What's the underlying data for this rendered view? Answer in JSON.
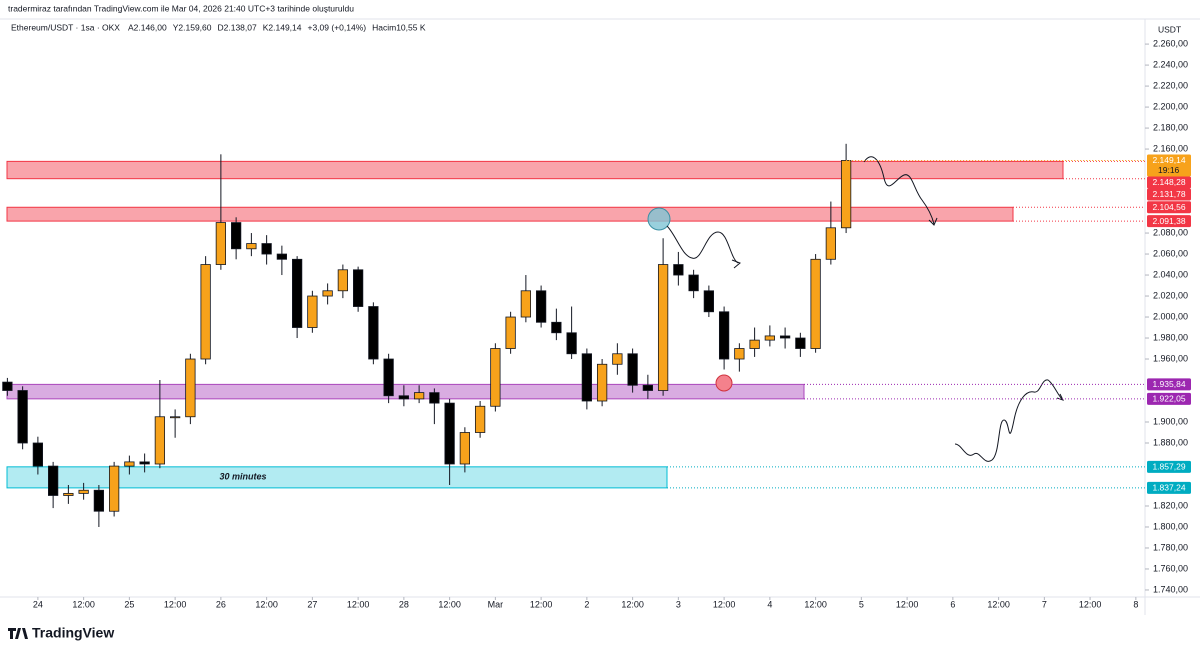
{
  "attribution": "tradermiraz tarafından TradingView.com ile Mar 04, 2026 21:40 UTC+3 tarihinde oluşturuldu",
  "brand": "TradingView",
  "chart_data": {
    "type": "candlestick",
    "title": "Ethereum/USDT · 1sa · OKX",
    "ohlc_header": [
      "A2.146,00",
      "Y2.159,60",
      "D2.138,07",
      "K2.149,14",
      "+3,09 (+0,14%)",
      "Hacim10,55 K"
    ],
    "y_unit": "USDT",
    "up_color": "#f7a21b",
    "down_color": "#000000",
    "x": [
      -8,
      -4,
      0,
      4,
      8,
      12,
      16,
      20,
      24,
      28,
      32,
      36,
      40,
      44,
      48,
      52,
      56,
      60,
      64,
      68,
      72,
      76,
      80,
      84,
      88,
      92,
      96,
      100,
      104,
      108,
      112,
      116,
      120,
      124,
      128,
      132,
      136,
      140,
      144,
      148,
      152,
      156,
      160,
      164,
      168,
      172,
      176,
      180,
      184,
      188,
      192,
      196,
      200,
      204,
      208,
      212
    ],
    "open": [
      1938,
      1930,
      1880,
      1858,
      1830,
      1832,
      1835,
      1815,
      1858,
      1862,
      1860,
      1905,
      1905,
      1960,
      2050,
      2090,
      2065,
      2070,
      2060,
      2055,
      1990,
      2020,
      2025,
      2045,
      2010,
      1960,
      1925,
      1922,
      1928,
      1918,
      1860,
      1890,
      1915,
      1970,
      2000,
      2025,
      1995,
      1985,
      1965,
      1920,
      1955,
      1965,
      1935,
      1930,
      2050,
      2040,
      2025,
      2005,
      1960,
      1970,
      1978,
      1982,
      1980,
      1970,
      2055,
      2085
    ],
    "high": [
      1942,
      1934,
      1886,
      1862,
      1840,
      1842,
      1840,
      1862,
      1868,
      1870,
      1940,
      1912,
      1965,
      2058,
      2155,
      2095,
      2080,
      2078,
      2068,
      2058,
      2025,
      2032,
      2050,
      2048,
      2014,
      1965,
      1935,
      1935,
      1932,
      1922,
      1895,
      1920,
      1975,
      2005,
      2040,
      2030,
      2008,
      2010,
      1970,
      1960,
      1975,
      1970,
      1945,
      2075,
      2062,
      2045,
      2030,
      2010,
      1975,
      1990,
      1992,
      1990,
      1985,
      2060,
      2110,
      2165
    ],
    "low": [
      1925,
      1874,
      1850,
      1818,
      1822,
      1826,
      1800,
      1810,
      1850,
      1852,
      1856,
      1885,
      1898,
      1955,
      2045,
      2055,
      2058,
      2050,
      2040,
      1980,
      1985,
      2012,
      2018,
      2005,
      1955,
      1918,
      1915,
      1918,
      1898,
      1840,
      1852,
      1885,
      1910,
      1965,
      1995,
      1990,
      1978,
      1960,
      1912,
      1915,
      1945,
      1928,
      1922,
      1925,
      2030,
      2018,
      2000,
      1950,
      1948,
      1962,
      1972,
      1970,
      1962,
      1966,
      2050,
      2080
    ],
    "close": [
      1930,
      1880,
      1858,
      1830,
      1832,
      1835,
      1815,
      1858,
      1862,
      1860,
      1905,
      1905,
      1960,
      2050,
      2090,
      2065,
      2070,
      2060,
      2055,
      1990,
      2020,
      2025,
      2045,
      2010,
      1960,
      1925,
      1922,
      1928,
      1918,
      1860,
      1890,
      1915,
      1970,
      2000,
      2025,
      1995,
      1985,
      1965,
      1920,
      1955,
      1965,
      1935,
      1930,
      2050,
      2040,
      2025,
      2005,
      1960,
      1970,
      1978,
      1982,
      1980,
      1970,
      2055,
      2085,
      2149.14
    ],
    "xlim": [
      -8.1,
      290.4
    ],
    "xticks": [
      {
        "value": 0,
        "label": "24"
      },
      {
        "value": 12,
        "label": "12:00"
      },
      {
        "value": 24,
        "label": "25"
      },
      {
        "value": 36,
        "label": "12:00"
      },
      {
        "value": 48,
        "label": "26"
      },
      {
        "value": 60,
        "label": "12:00"
      },
      {
        "value": 72,
        "label": "27"
      },
      {
        "value": 84,
        "label": "12:00"
      },
      {
        "value": 96,
        "label": "28"
      },
      {
        "value": 108,
        "label": "12:00"
      },
      {
        "value": 120,
        "label": "Mar"
      },
      {
        "value": 132,
        "label": "12:00"
      },
      {
        "value": 144,
        "label": "2"
      },
      {
        "value": 156,
        "label": "12:00"
      },
      {
        "value": 168,
        "label": "3"
      },
      {
        "value": 180,
        "label": "12:00"
      },
      {
        "value": 192,
        "label": "4"
      },
      {
        "value": 204,
        "label": "12:00"
      },
      {
        "value": 216,
        "label": "5"
      },
      {
        "value": 228,
        "label": "12:00"
      },
      {
        "value": 240,
        "label": "6"
      },
      {
        "value": 252,
        "label": "12:00"
      },
      {
        "value": 264,
        "label": "7"
      },
      {
        "value": 276,
        "label": "12:00"
      },
      {
        "value": 288,
        "label": "8"
      }
    ],
    "ylim": [
      1733.3,
      2283.9
    ],
    "yticks": [
      {
        "value": 2260,
        "label": "2.260,00"
      },
      {
        "value": 2240,
        "label": "2.240,00"
      },
      {
        "value": 2220,
        "label": "2.220,00"
      },
      {
        "value": 2200,
        "label": "2.200,00"
      },
      {
        "value": 2180,
        "label": "2.180,00"
      },
      {
        "value": 2160,
        "label": "2.160,00"
      },
      {
        "value": 2080,
        "label": "2.080,00"
      },
      {
        "value": 2060,
        "label": "2.060,00"
      },
      {
        "value": 2040,
        "label": "2.040,00"
      },
      {
        "value": 2020,
        "label": "2.020,00"
      },
      {
        "value": 2000,
        "label": "2.000,00"
      },
      {
        "value": 1980,
        "label": "1.980,00"
      },
      {
        "value": 1960,
        "label": "1.960,00"
      },
      {
        "value": 1900,
        "label": "1.900,00"
      },
      {
        "value": 1880,
        "label": "1.880,00"
      },
      {
        "value": 1820,
        "label": "1.820,00"
      },
      {
        "value": 1800,
        "label": "1.800,00"
      },
      {
        "value": 1780,
        "label": "1.780,00"
      },
      {
        "value": 1760,
        "label": "1.760,00"
      },
      {
        "value": 1740,
        "label": "1.740,00"
      }
    ],
    "price_tags": [
      {
        "value": 2149.14,
        "label": "2.149,14",
        "sublabel": "19:16",
        "color": "#f7a21b"
      },
      {
        "value": 2148.28,
        "label": "2.148,28",
        "color": "#f23645"
      },
      {
        "value": 2131.78,
        "label": "2.131,78",
        "color": "#f23645"
      },
      {
        "value": 2104.56,
        "label": "2.104,56",
        "color": "#f23645"
      },
      {
        "value": 2091.38,
        "label": "2.091,38",
        "color": "#f23645"
      },
      {
        "value": 1935.84,
        "label": "1.935,84",
        "color": "#9c27b0"
      },
      {
        "value": 1922.05,
        "label": "1.922,05",
        "color": "#9c27b0"
      },
      {
        "value": 1857.29,
        "label": "1.857,29",
        "color": "#00acc1"
      },
      {
        "value": 1837.24,
        "label": "1.837,24",
        "color": "#00acc1"
      }
    ],
    "zones": [
      {
        "low": 2131.78,
        "high": 2148.28,
        "color": "#f23645"
      },
      {
        "low": 2091.38,
        "high": 2104.56,
        "color": "#f23645"
      },
      {
        "low": 1922.05,
        "high": 1935.84,
        "color": "#ab47bc"
      },
      {
        "low": 1837.24,
        "high": 1857.29,
        "color": "#00bcd4",
        "label": "30 minutes"
      }
    ]
  }
}
